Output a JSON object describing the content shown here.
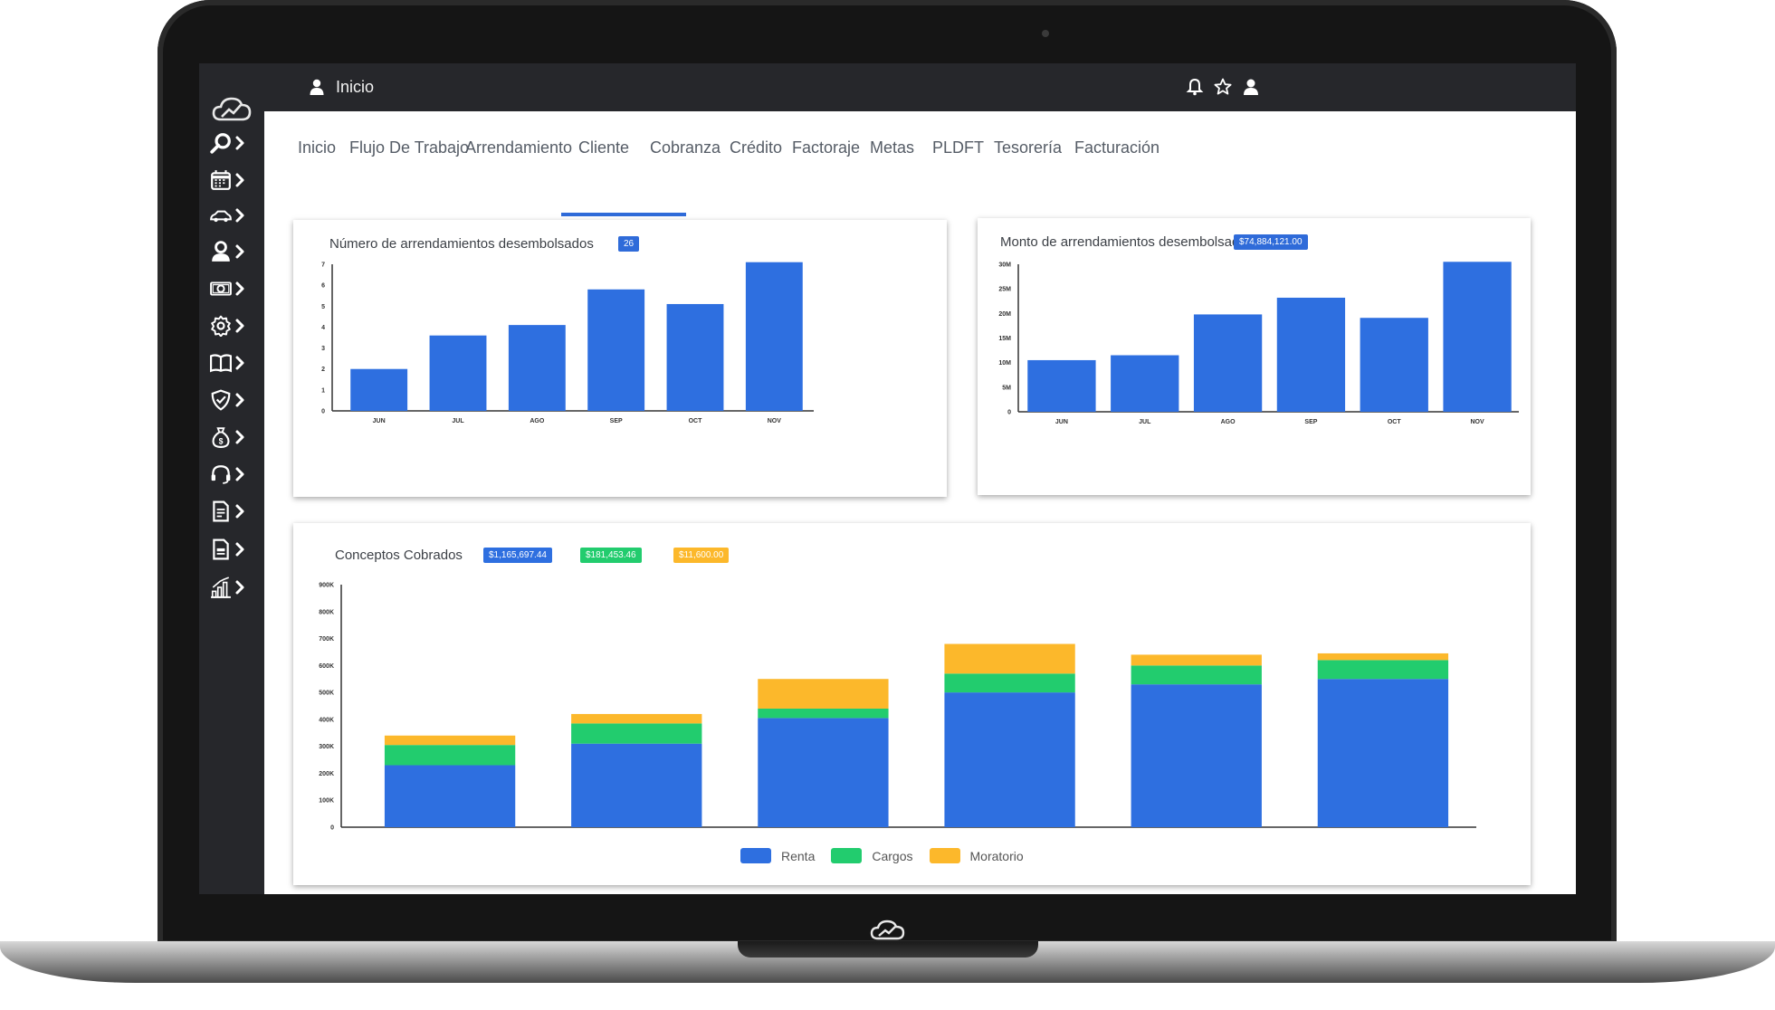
{
  "app": {
    "title": "Inicio"
  },
  "colors": {
    "accent": "#2f6bd9",
    "renta": "#2e6fe0",
    "cargos": "#22cc6e",
    "moratorio": "#fcb82b",
    "sidebar": "#26272b"
  },
  "sidebar": {
    "items": [
      {
        "icon": "search-icon"
      },
      {
        "icon": "calendar-icon"
      },
      {
        "icon": "car-icon"
      },
      {
        "icon": "user-icon"
      },
      {
        "icon": "money-icon"
      },
      {
        "icon": "gear-icon"
      },
      {
        "icon": "book-icon"
      },
      {
        "icon": "shield-icon"
      },
      {
        "icon": "money-bag-icon"
      },
      {
        "icon": "headset-icon"
      },
      {
        "icon": "document-icon"
      },
      {
        "icon": "report-icon"
      },
      {
        "icon": "chart-growth-icon"
      }
    ]
  },
  "topbar": {
    "icons": [
      "bell-icon",
      "star-icon",
      "user-icon"
    ]
  },
  "tabs": [
    {
      "label": "Inicio"
    },
    {
      "label": "Flujo De Trabajo"
    },
    {
      "label": "Arrendamiento",
      "active": true
    },
    {
      "label": "Cliente"
    },
    {
      "label": "Cobranza"
    },
    {
      "label": "Crédito"
    },
    {
      "label": "Factoraje"
    },
    {
      "label": "Metas"
    },
    {
      "label": "PLDFT"
    },
    {
      "label": "Tesorería"
    },
    {
      "label": "Facturación"
    }
  ],
  "cards": {
    "numero": {
      "title": "Número de arrendamientos desembolsados",
      "badge": "26"
    },
    "monto": {
      "title": "Monto de arrendamientos desembolsados",
      "badge": "$74,884,121.00"
    },
    "conceptos": {
      "title": "Conceptos Cobrados",
      "badges": [
        "$1,165,697.44",
        "$181,453.46",
        "$11,600.00"
      ]
    }
  },
  "chart_data": [
    {
      "type": "bar",
      "categories": [
        "JUN",
        "JUL",
        "AGO",
        "SEP",
        "OCT",
        "NOV"
      ],
      "values": [
        2,
        3.6,
        4.1,
        5.8,
        5.1,
        7.1
      ],
      "ylim": [
        0,
        7
      ],
      "yticks": [
        "0",
        "1",
        "2",
        "3",
        "4",
        "5",
        "6",
        "7"
      ],
      "grid": false
    },
    {
      "type": "bar",
      "categories": [
        "JUN",
        "JUL",
        "AGO",
        "SEP",
        "OCT",
        "NOV"
      ],
      "values": [
        10.5,
        11.5,
        19.8,
        23.2,
        19.1,
        30.5
      ],
      "ylim": [
        0,
        30
      ],
      "yticks": [
        "0",
        "5M",
        "10M",
        "15M",
        "20M",
        "25M",
        "30M"
      ],
      "grid": false
    },
    {
      "type": "bar",
      "stacked": true,
      "categories": [
        "",
        "",
        "",
        "",
        "",
        ""
      ],
      "series": [
        {
          "name": "Renta",
          "values": [
            230,
            310,
            405,
            500,
            530,
            550
          ]
        },
        {
          "name": "Cargos",
          "values": [
            75,
            75,
            35,
            70,
            70,
            70
          ]
        },
        {
          "name": "Moratorio",
          "values": [
            35,
            35,
            110,
            110,
            40,
            25
          ]
        }
      ],
      "ylim": [
        0,
        900
      ],
      "yticks": [
        "0",
        "100K",
        "200K",
        "300K",
        "400K",
        "500K",
        "600K",
        "700K",
        "800K",
        "900K"
      ],
      "legend": "bottom",
      "grid": false
    }
  ]
}
